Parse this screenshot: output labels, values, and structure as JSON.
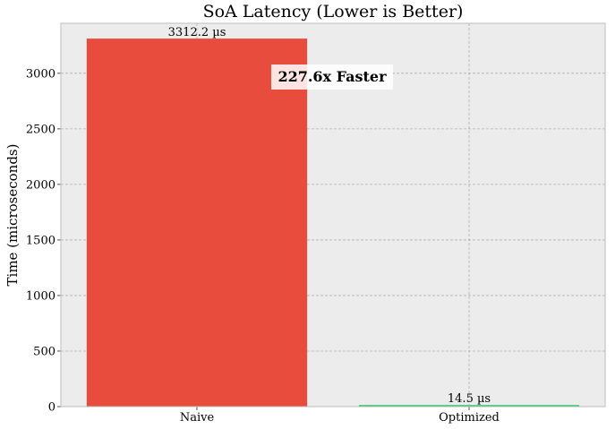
{
  "chart_data": {
    "type": "bar",
    "title": "SoA Latency (Lower is Better)",
    "xlabel": "",
    "ylabel": "Time (microseconds)",
    "categories": [
      "Naive",
      "Optimized"
    ],
    "values": [
      3312.2,
      14.5
    ],
    "value_labels": [
      "3312.2 µs",
      "14.5 µs"
    ],
    "colors": [
      "#e74c3c",
      "#2ecc71"
    ],
    "ylim": [
      0,
      3450
    ],
    "yticks": [
      0,
      500,
      1000,
      1500,
      2000,
      2500,
      3000
    ],
    "grid": true,
    "annotation": "227.6x Faster"
  }
}
